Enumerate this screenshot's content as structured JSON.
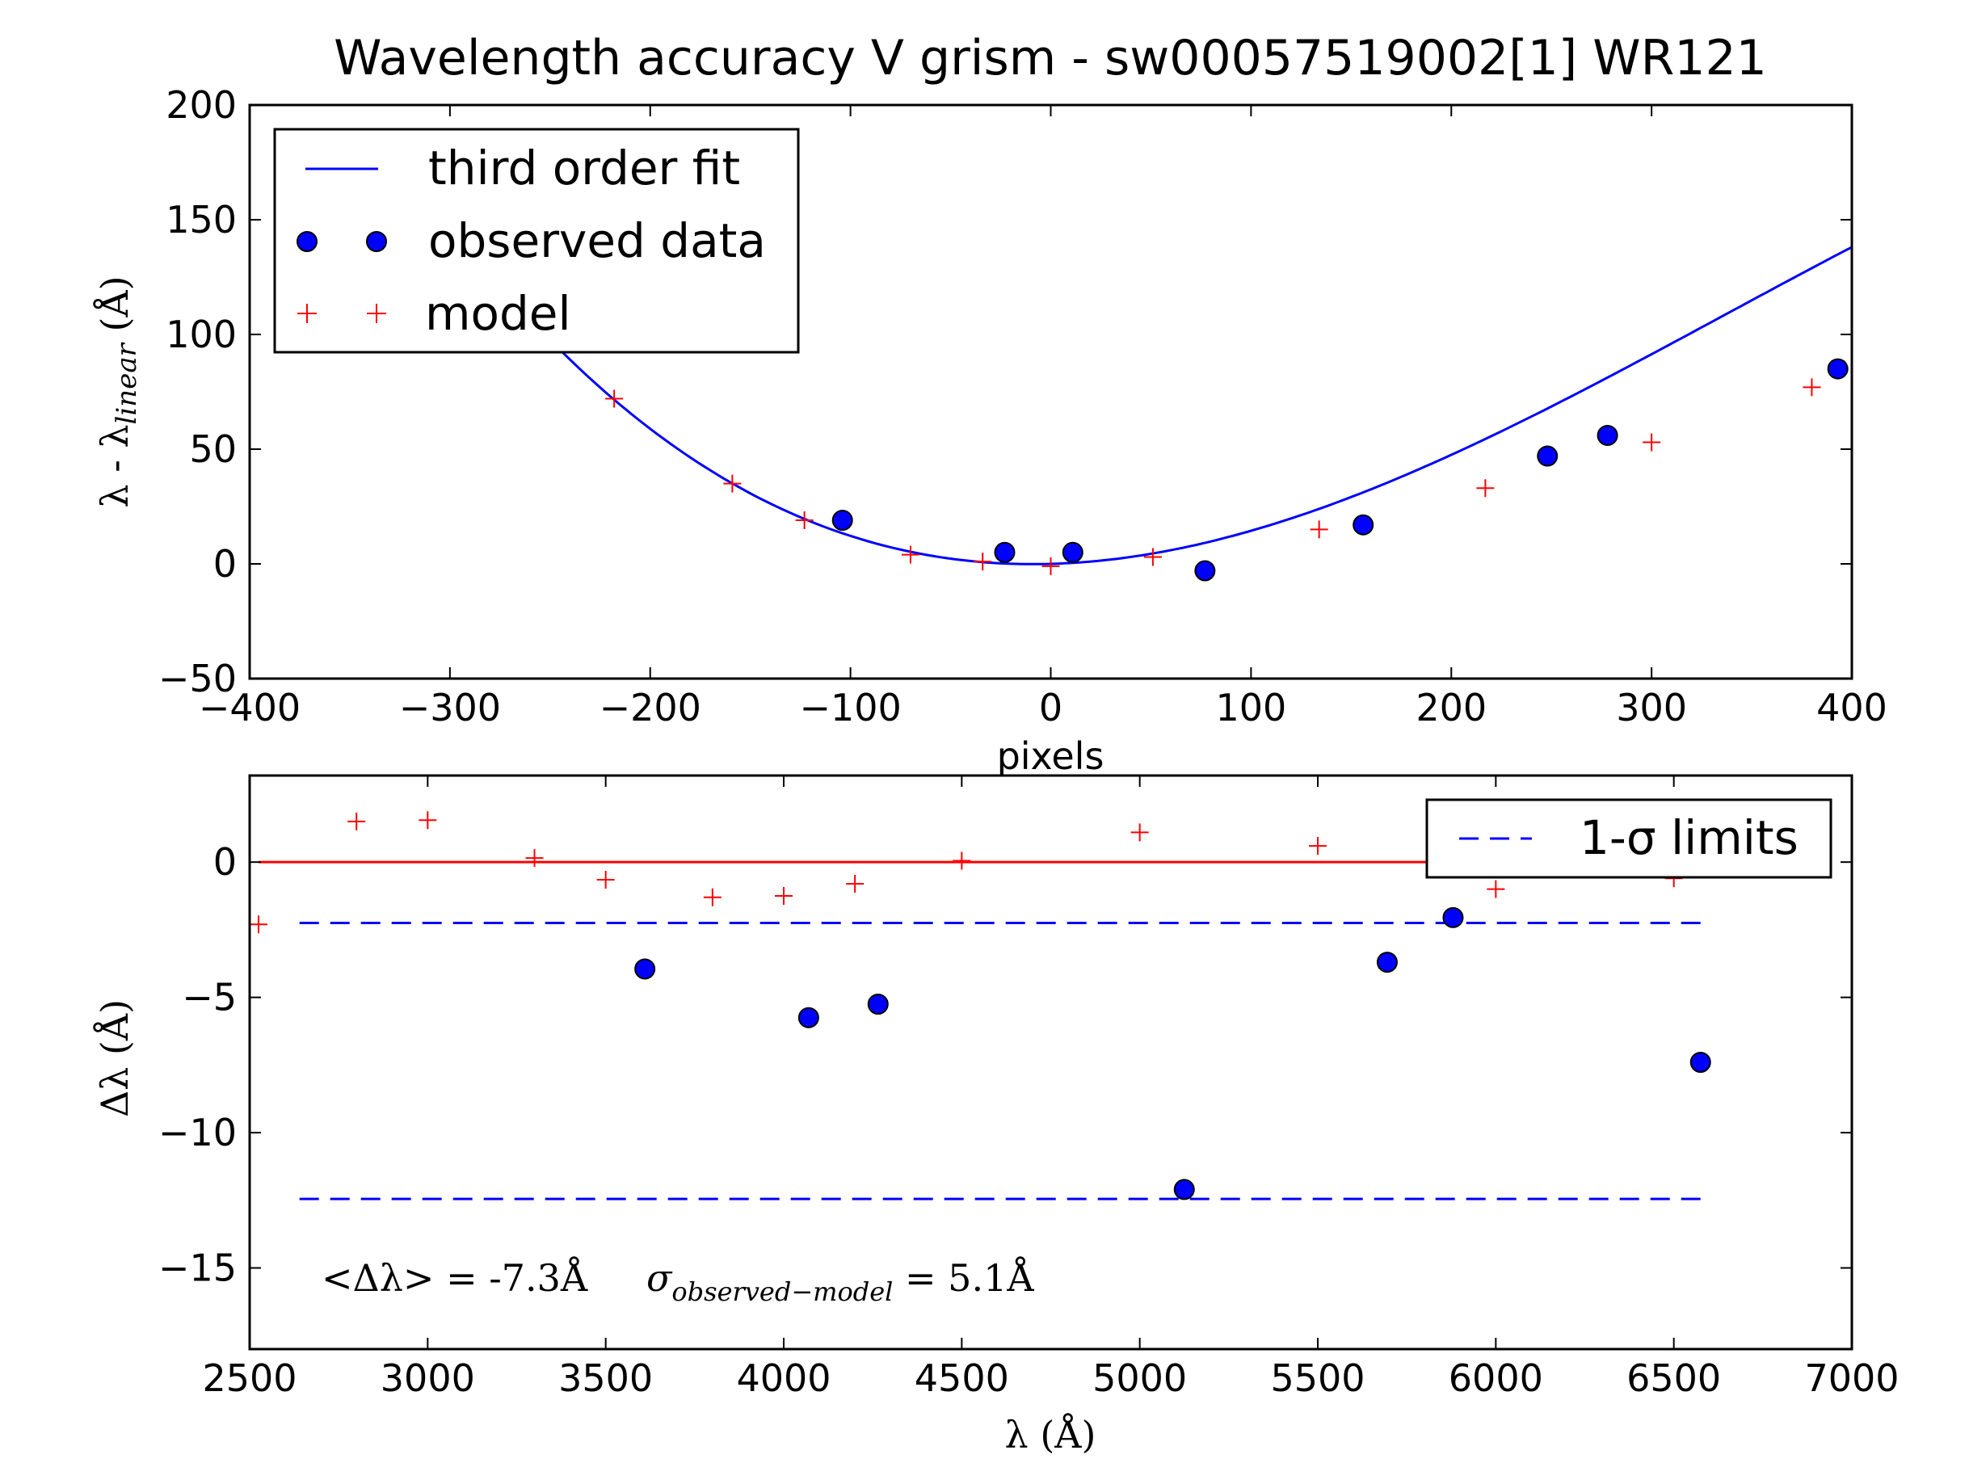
{
  "chart_data": [
    {
      "type": "line",
      "title": "Wavelength accuracy V grism - sw00057519002[1] WR121",
      "xlabel": "pixels",
      "ylabel": "λ - λlinear (Å)",
      "xlim": [
        -400,
        400
      ],
      "ylim": [
        -50,
        200
      ],
      "xticks": [
        -400,
        -300,
        -200,
        -100,
        0,
        100,
        200,
        300,
        400
      ],
      "xtick_labels": [
        "−400",
        "−300",
        "−200",
        "−100",
        "0",
        "100",
        "200",
        "300",
        "400"
      ],
      "yticks": [
        -50,
        0,
        50,
        100,
        150,
        200
      ],
      "ytick_labels": [
        "−50",
        "0",
        "50",
        "100",
        "150",
        "200"
      ],
      "grid": false,
      "legend_position": "top-left",
      "series": [
        {
          "name": "third order fit",
          "color": "#0000ff",
          "style": "line",
          "coefficients": [
            0,
            0.0244,
            0.00133,
            -1.32e-06
          ],
          "x_start": -255,
          "x_end": 400
        },
        {
          "name": "observed data",
          "color": "#0000ff",
          "style": "circle",
          "x": [
            -104,
            -23,
            11,
            77,
            156,
            248,
            278,
            393
          ],
          "y": [
            19,
            5,
            5,
            -3,
            17,
            47,
            56,
            85
          ]
        },
        {
          "name": "model",
          "color": "#ff0000",
          "style": "plus",
          "x": [
            -218,
            -159,
            -123,
            -70,
            -34,
            0,
            51,
            134,
            217,
            300,
            380
          ],
          "y": [
            72,
            35,
            19,
            4,
            1,
            -1,
            3,
            15,
            33,
            53,
            77
          ]
        }
      ]
    },
    {
      "type": "scatter",
      "title": "",
      "xlabel": "λ (Å)",
      "ylabel": "Δλ (Å)",
      "xlim": [
        2500,
        7000
      ],
      "ylim": [
        -18,
        3.2
      ],
      "xticks": [
        2500,
        3000,
        3500,
        4000,
        4500,
        5000,
        5500,
        6000,
        6500,
        7000
      ],
      "xtick_labels": [
        "2500",
        "3000",
        "3500",
        "4000",
        "4500",
        "5000",
        "5500",
        "6000",
        "6500",
        "7000"
      ],
      "yticks": [
        -15,
        -10,
        -5,
        0
      ],
      "ytick_labels": [
        "−15",
        "−10",
        "−5",
        "0"
      ],
      "grid": false,
      "legend_position": "top-right",
      "reference_line": {
        "y": 0,
        "color": "#ff0000",
        "x_start": 2525,
        "x_end": 6575
      },
      "limit_lines": {
        "name": "1-σ limits",
        "color": "#0000ff",
        "values": [
          -2.25,
          -12.45
        ],
        "x_start": 2640,
        "x_end": 6575
      },
      "series": [
        {
          "name": "observed data",
          "color": "#0000ff",
          "style": "circle",
          "x": [
            3610,
            4070,
            4265,
            5125,
            5695,
            5880,
            6575
          ],
          "y": [
            -3.95,
            -5.75,
            -5.25,
            -12.1,
            -3.7,
            -2.05,
            -7.4
          ]
        },
        {
          "name": "model",
          "color": "#ff0000",
          "style": "plus",
          "x": [
            2525,
            2800,
            3000,
            3300,
            3500,
            3800,
            4000,
            4200,
            4500,
            5000,
            5500,
            6000,
            6500
          ],
          "y": [
            -2.3,
            1.5,
            1.55,
            0.15,
            -0.65,
            -1.3,
            -1.25,
            -0.8,
            0.05,
            1.1,
            0.6,
            -1.0,
            -0.6
          ]
        }
      ],
      "annotation": {
        "mean_label": "<Δλ> = -7.3Å",
        "sigma_symbol": "σ",
        "sigma_subscript": "observed−model",
        "sigma_value": " = 5.1Å"
      }
    }
  ],
  "legend_top": [
    {
      "label": "third order fit"
    },
    {
      "label": "observed data"
    },
    {
      "label": "model"
    }
  ],
  "legend_bottom": {
    "label": "1-σ limits"
  }
}
